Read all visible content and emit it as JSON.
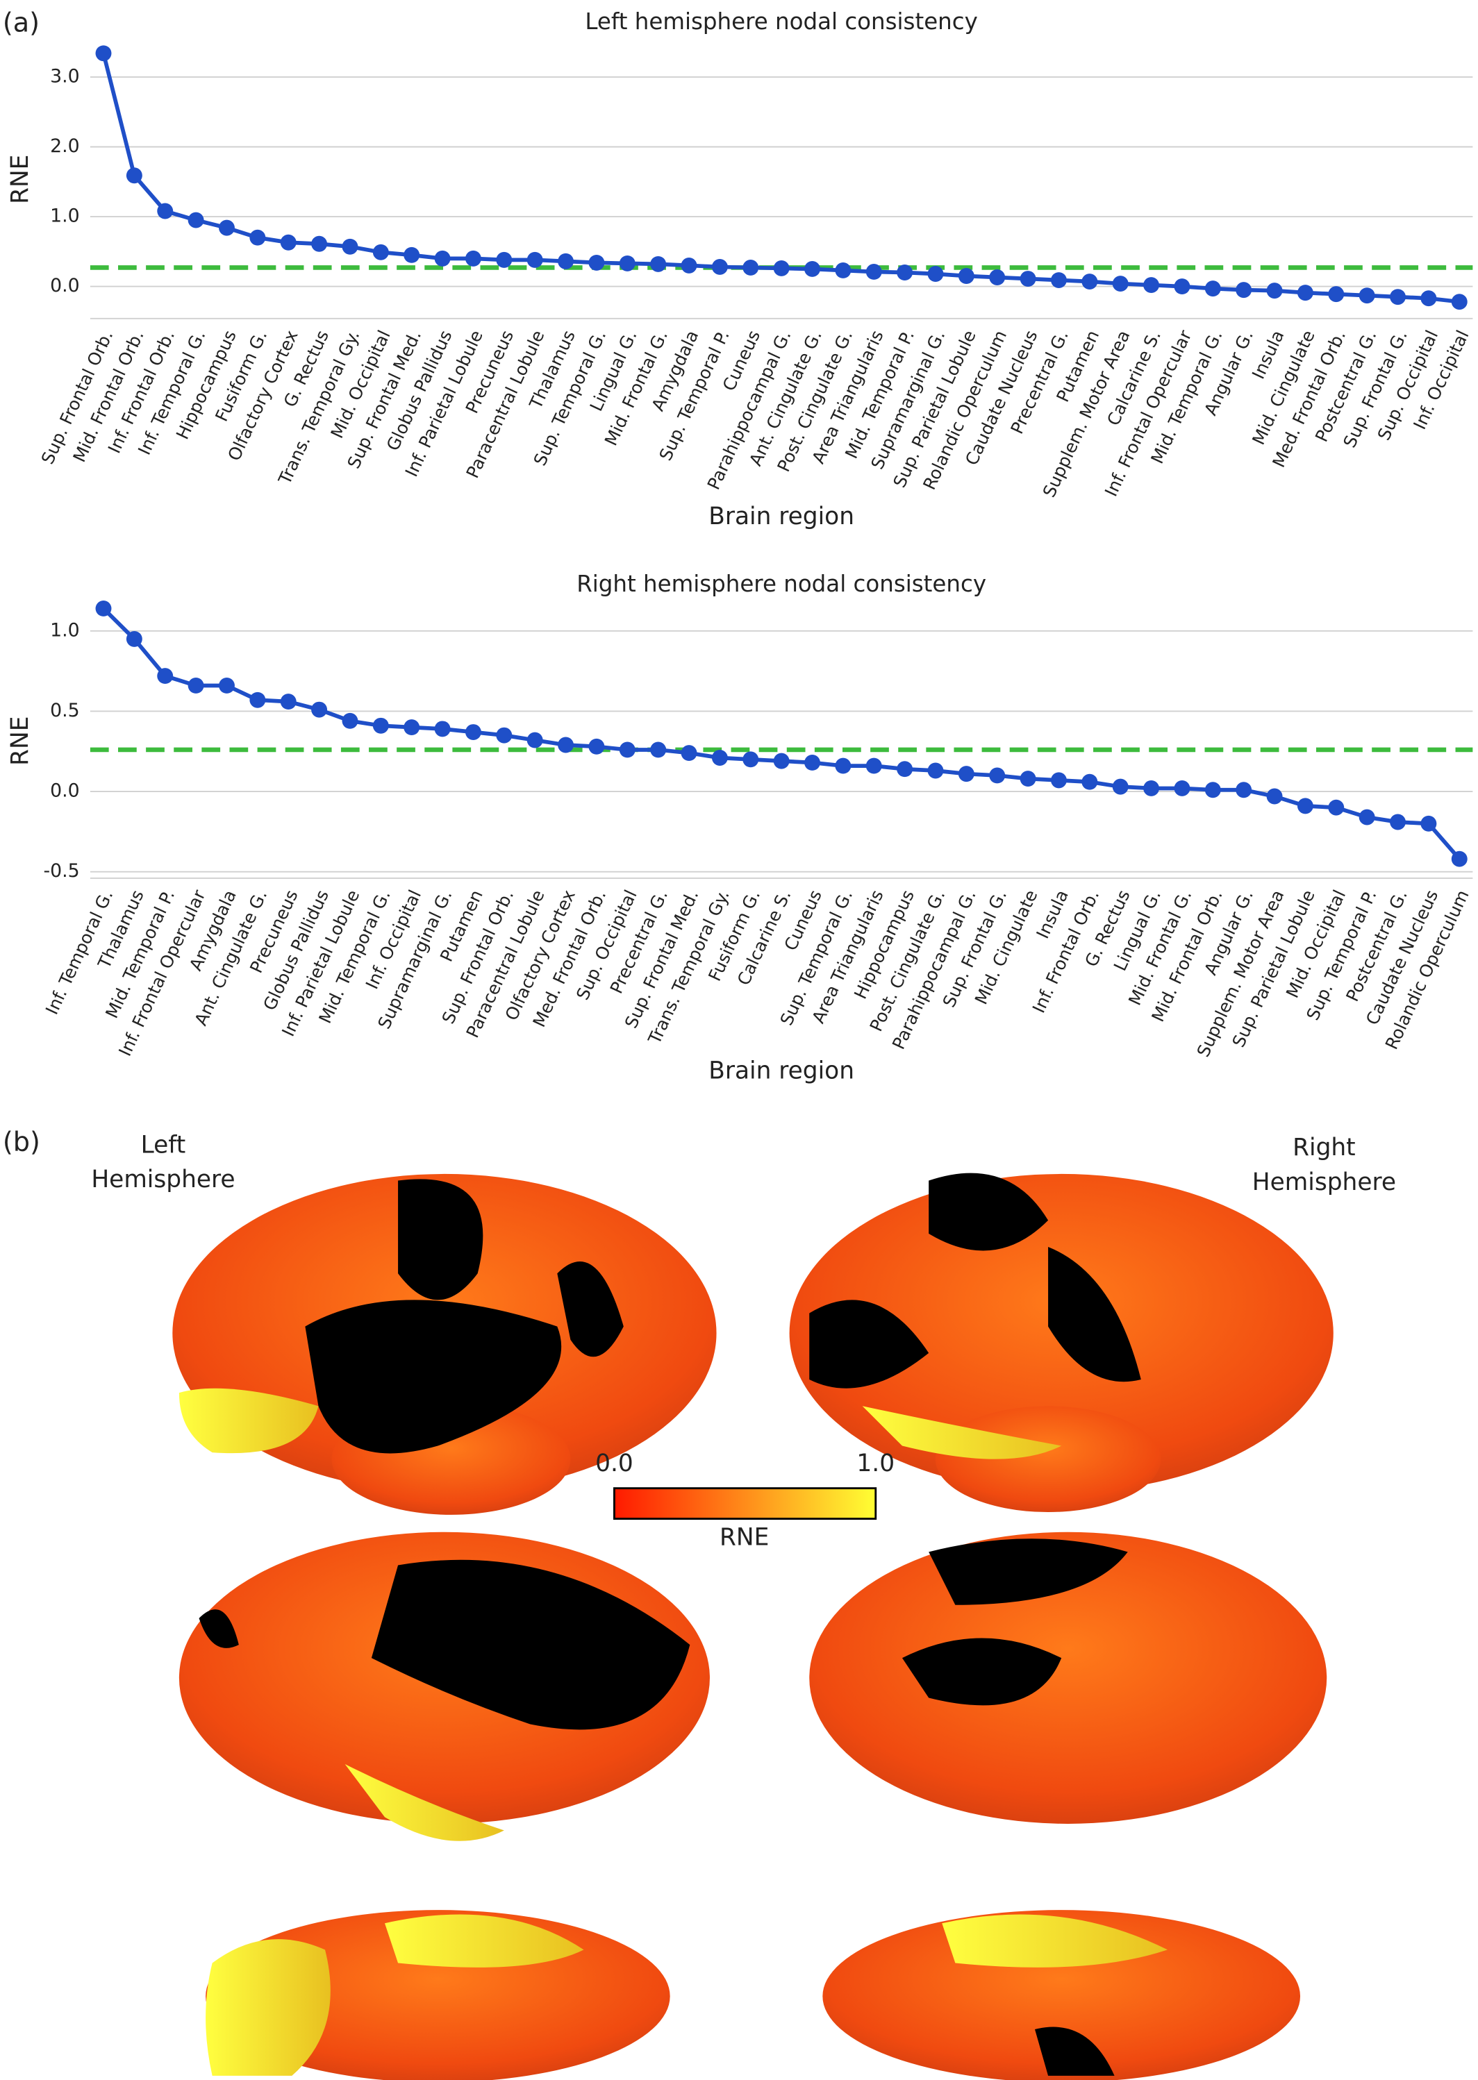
{
  "panel_labels": [
    "(a)",
    "(b)"
  ],
  "chart_data": [
    {
      "type": "line",
      "title": "Left hemisphere nodal consistency",
      "x_label": "Brain region",
      "y_label": "RNE",
      "categories": [
        "Sup. Frontal Orb.",
        "Mid. Frontal Orb.",
        "Inf. Frontal Orb.",
        "Inf. Temporal G.",
        "Hippocampus",
        "Fusiform G.",
        "Olfactory Cortex",
        "G. Rectus",
        "Trans. Temporal Gy.",
        "Mid. Occipital",
        "Sup. Frontal Med.",
        "Globus Pallidus",
        "Inf. Parietal Lobule",
        "Precuneus",
        "Paracentral Lobule",
        "Thalamus",
        "Sup. Temporal G.",
        "Lingual G.",
        "Mid. Frontal G.",
        "Amygdala",
        "Sup. Temporal P.",
        "Cuneus",
        "Parahippocampal G.",
        "Ant. Cingulate G.",
        "Post. Cingulate G.",
        "Area Triangularis",
        "Mid. Temporal P.",
        "Supramarginal G.",
        "Sup. Parietal Lobule",
        "Rolandic Operculum",
        "Caudate Nucleus",
        "Precentral G.",
        "Putamen",
        "Supplem. Motor Area",
        "Calcarine S.",
        "Inf. Frontal Opercular",
        "Mid. Temporal G.",
        "Angular G.",
        "Insula",
        "Mid. Cingulate",
        "Med. Frontal Orb.",
        "Postcentral G.",
        "Sup. Frontal G.",
        "Sup. Occipital",
        "Inf. Occipital"
      ],
      "values": [
        3.34,
        1.59,
        1.08,
        0.95,
        0.84,
        0.7,
        0.63,
        0.61,
        0.57,
        0.49,
        0.45,
        0.4,
        0.4,
        0.38,
        0.38,
        0.36,
        0.34,
        0.33,
        0.32,
        0.3,
        0.28,
        0.27,
        0.26,
        0.25,
        0.23,
        0.21,
        0.2,
        0.18,
        0.15,
        0.13,
        0.11,
        0.09,
        0.07,
        0.04,
        0.02,
        0.0,
        -0.03,
        -0.05,
        -0.06,
        -0.09,
        -0.11,
        -0.13,
        -0.15,
        -0.17,
        -0.22
      ],
      "color": "#1f4fc8",
      "threshold": 0.27,
      "threshold_color": "#3dbb3d",
      "ylim": [
        -0.46,
        3.53
      ],
      "yticks": [
        {
          "value": 0,
          "label": "0.0"
        },
        {
          "value": 1,
          "label": "1.0"
        },
        {
          "value": 2,
          "label": "2.0"
        },
        {
          "value": 3,
          "label": "3.0"
        }
      ],
      "grid": true
    },
    {
      "type": "line",
      "title": "Right hemisphere nodal consistency",
      "x_label": "Brain region",
      "y_label": "RNE",
      "categories": [
        "Inf. Temporal G.",
        "Thalamus",
        "Mid. Temporal P.",
        "Inf. Frontal Opercular",
        "Amygdala",
        "Ant. Cingulate G.",
        "Precuneus",
        "Globus Pallidus",
        "Inf. Parietal Lobule",
        "Mid. Temporal G.",
        "Inf. Occipital",
        "Supramarginal G.",
        "Putamen",
        "Sup. Frontal Orb.",
        "Paracentral Lobule",
        "Olfactory Cortex",
        "Med. Frontal Orb.",
        "Sup. Occipital",
        "Precentral G.",
        "Sup. Frontal Med.",
        "Trans. Temporal Gy.",
        "Fusiform G.",
        "Calcarine S.",
        "Cuneus",
        "Sup. Temporal G.",
        "Area Triangularis",
        "Hippocampus",
        "Post. Cingulate G.",
        "Parahippocampal G.",
        "Sup. Frontal G.",
        "Mid. Cingulate",
        "Insula",
        "Inf. Frontal Orb.",
        "G. Rectus",
        "Lingual G.",
        "Mid. Frontal G.",
        "Mid. Frontal Orb.",
        "Angular G.",
        "Supplem. Motor Area",
        "Sup. Parietal Lobule",
        "Mid. Occipital",
        "Sup. Temporal P.",
        "Postcentral G.",
        "Caudate Nucleus",
        "Rolandic Operculum"
      ],
      "values": [
        1.14,
        0.95,
        0.72,
        0.66,
        0.66,
        0.57,
        0.56,
        0.51,
        0.44,
        0.41,
        0.4,
        0.39,
        0.37,
        0.35,
        0.32,
        0.29,
        0.28,
        0.26,
        0.26,
        0.24,
        0.21,
        0.2,
        0.19,
        0.18,
        0.16,
        0.16,
        0.14,
        0.13,
        0.11,
        0.1,
        0.08,
        0.07,
        0.06,
        0.03,
        0.02,
        0.02,
        0.01,
        0.01,
        -0.03,
        -0.09,
        -0.1,
        -0.16,
        -0.19,
        -0.2,
        -0.42
      ],
      "color": "#1f4fc8",
      "threshold": 0.26,
      "threshold_color": "#3dbb3d",
      "ylim": [
        -0.54,
        1.17
      ],
      "yticks": [
        {
          "value": -0.5,
          "label": "-0.5"
        },
        {
          "value": 0,
          "label": "0.0"
        },
        {
          "value": 0.5,
          "label": "0.5"
        },
        {
          "value": 1,
          "label": "1.0"
        }
      ],
      "grid": true
    }
  ],
  "brain_figure": {
    "left_label": [
      "Left",
      "Hemisphere"
    ],
    "right_label": [
      "Right",
      "Hemisphere"
    ],
    "colorbar": {
      "label": "RNE",
      "range": [
        0,
        1
      ],
      "ticks": [
        {
          "value": 0,
          "label": "0.0"
        },
        {
          "value": 1,
          "label": "1.0"
        }
      ]
    }
  }
}
